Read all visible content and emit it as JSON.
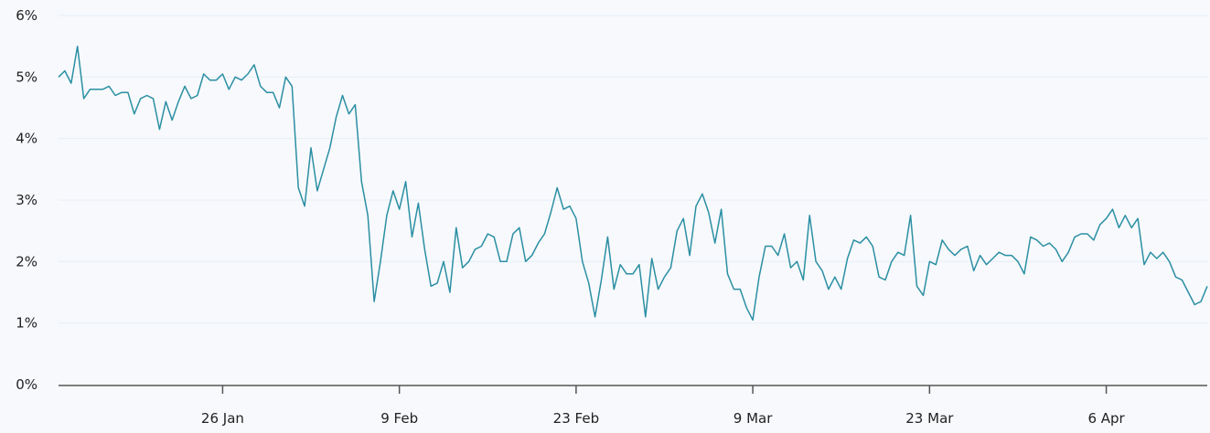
{
  "chart_data": {
    "type": "line",
    "title": "",
    "xlabel": "",
    "ylabel": "",
    "ylim": [
      0,
      6
    ],
    "y_ticks": [
      "0%",
      "1%",
      "2%",
      "3%",
      "4%",
      "5%",
      "6%"
    ],
    "y_tick_values": [
      0,
      1,
      2,
      3,
      4,
      5,
      6
    ],
    "x_ticks": [
      "26 Jan",
      "9 Feb",
      "23 Feb",
      "9 Mar",
      "23 Mar",
      "6 Apr"
    ],
    "xlim": [
      "13 Jan 00:00",
      "14 Apr 00:00"
    ],
    "grid": true,
    "line_color": "#2b8fa3",
    "series": [
      {
        "x": [
          "13 Jan 00:00",
          "13 Jan 12:00",
          "14 Jan 00:00",
          "14 Jan 12:00",
          "15 Jan 00:00",
          "15 Jan 12:00",
          "16 Jan 00:00",
          "16 Jan 12:00",
          "17 Jan 00:00",
          "17 Jan 12:00",
          "18 Jan 00:00",
          "18 Jan 12:00",
          "19 Jan 00:00",
          "19 Jan 12:00",
          "20 Jan 00:00",
          "20 Jan 12:00",
          "21 Jan 00:00",
          "21 Jan 12:00",
          "22 Jan 00:00",
          "22 Jan 12:00",
          "23 Jan 00:00",
          "23 Jan 12:00",
          "24 Jan 00:00",
          "24 Jan 12:00",
          "25 Jan 00:00",
          "25 Jan 12:00",
          "26 Jan 00:00",
          "26 Jan 12:00",
          "27 Jan 00:00",
          "27 Jan 12:00",
          "28 Jan 00:00",
          "28 Jan 12:00",
          "29 Jan 00:00",
          "29 Jan 12:00",
          "30 Jan 00:00",
          "30 Jan 12:00",
          "31 Jan 00:00",
          "31 Jan 12:00",
          "1 Feb 00:00",
          "1 Feb 12:00",
          "2 Feb 00:00",
          "2 Feb 12:00",
          "3 Feb 00:00",
          "3 Feb 12:00",
          "4 Feb 00:00",
          "4 Feb 12:00",
          "5 Feb 00:00",
          "5 Feb 12:00",
          "6 Feb 00:00",
          "6 Feb 12:00",
          "7 Feb 00:00",
          "7 Feb 12:00",
          "8 Feb 00:00",
          "8 Feb 12:00",
          "9 Feb 00:00",
          "9 Feb 12:00",
          "10 Feb 00:00",
          "10 Feb 12:00",
          "11 Feb 00:00",
          "11 Feb 12:00",
          "12 Feb 00:00",
          "12 Feb 12:00",
          "13 Feb 00:00",
          "13 Feb 12:00",
          "14 Feb 00:00",
          "14 Feb 12:00",
          "15 Feb 00:00",
          "15 Feb 12:00",
          "16 Feb 00:00",
          "16 Feb 12:00",
          "17 Feb 00:00",
          "17 Feb 12:00",
          "18 Feb 00:00",
          "18 Feb 12:00",
          "19 Feb 00:00",
          "19 Feb 12:00",
          "20 Feb 00:00",
          "20 Feb 12:00",
          "21 Feb 00:00",
          "21 Feb 12:00",
          "22 Feb 00:00",
          "22 Feb 12:00",
          "23 Feb 00:00",
          "23 Feb 12:00",
          "24 Feb 00:00",
          "24 Feb 12:00",
          "25 Feb 00:00",
          "25 Feb 12:00",
          "26 Feb 00:00",
          "26 Feb 12:00",
          "27 Feb 00:00",
          "27 Feb 12:00",
          "28 Feb 00:00",
          "28 Feb 12:00",
          "1 Mar 00:00",
          "1 Mar 12:00",
          "2 Mar 00:00",
          "2 Mar 12:00",
          "3 Mar 00:00",
          "3 Mar 12:00",
          "4 Mar 00:00",
          "4 Mar 12:00",
          "5 Mar 00:00",
          "5 Mar 12:00",
          "6 Mar 00:00",
          "6 Mar 12:00",
          "7 Mar 00:00",
          "7 Mar 12:00",
          "8 Mar 00:00",
          "8 Mar 12:00",
          "9 Mar 00:00",
          "9 Mar 12:00",
          "10 Mar 00:00",
          "10 Mar 12:00",
          "11 Mar 00:00",
          "11 Mar 12:00",
          "12 Mar 00:00",
          "12 Mar 12:00",
          "13 Mar 00:00",
          "13 Mar 12:00",
          "14 Mar 00:00",
          "14 Mar 12:00",
          "15 Mar 00:00",
          "15 Mar 12:00",
          "16 Mar 00:00",
          "16 Mar 12:00",
          "17 Mar 00:00",
          "17 Mar 12:00",
          "18 Mar 00:00",
          "18 Mar 12:00",
          "19 Mar 00:00",
          "19 Mar 12:00",
          "20 Mar 00:00",
          "20 Mar 12:00",
          "21 Mar 00:00",
          "21 Mar 12:00",
          "22 Mar 00:00",
          "22 Mar 12:00",
          "23 Mar 00:00",
          "23 Mar 12:00",
          "24 Mar 00:00",
          "24 Mar 12:00",
          "25 Mar 00:00",
          "25 Mar 12:00",
          "26 Mar 00:00",
          "26 Mar 12:00",
          "27 Mar 00:00",
          "27 Mar 12:00",
          "28 Mar 00:00",
          "28 Mar 12:00",
          "29 Mar 00:00",
          "29 Mar 12:00",
          "30 Mar 00:00",
          "30 Mar 12:00",
          "31 Mar 00:00",
          "31 Mar 12:00",
          "1 Apr 00:00",
          "1 Apr 12:00",
          "2 Apr 00:00",
          "2 Apr 12:00",
          "3 Apr 00:00",
          "3 Apr 12:00",
          "4 Apr 00:00",
          "4 Apr 12:00",
          "5 Apr 00:00",
          "5 Apr 12:00",
          "6 Apr 00:00",
          "6 Apr 12:00",
          "7 Apr 00:00",
          "7 Apr 12:00",
          "8 Apr 00:00",
          "8 Apr 12:00",
          "9 Apr 00:00",
          "9 Apr 12:00",
          "10 Apr 00:00",
          "10 Apr 12:00",
          "11 Apr 00:00",
          "11 Apr 12:00",
          "12 Apr 00:00",
          "12 Apr 12:00",
          "13 Apr 00:00",
          "13 Apr 12:00",
          "14 Apr 00:00"
        ],
        "y": [
          5.0,
          5.1,
          4.9,
          5.5,
          4.65,
          4.8,
          4.8,
          4.8,
          4.85,
          4.7,
          4.75,
          4.75,
          4.4,
          4.65,
          4.7,
          4.65,
          4.15,
          4.6,
          4.3,
          4.6,
          4.85,
          4.65,
          4.7,
          5.05,
          4.95,
          4.95,
          5.05,
          4.8,
          5.0,
          4.95,
          5.05,
          5.2,
          4.85,
          4.75,
          4.75,
          4.5,
          5.0,
          4.85,
          3.2,
          2.9,
          3.85,
          3.15,
          3.5,
          3.85,
          4.35,
          4.7,
          4.4,
          4.55,
          3.3,
          2.75,
          1.35,
          2.0,
          2.75,
          3.15,
          2.85,
          3.3,
          2.4,
          2.95,
          2.2,
          1.6,
          1.65,
          2.0,
          1.5,
          2.55,
          1.9,
          2.0,
          2.2,
          2.25,
          2.45,
          2.4,
          2.0,
          2.0,
          2.45,
          2.55,
          2.0,
          2.1,
          2.3,
          2.45,
          2.8,
          3.2,
          2.85,
          2.9,
          2.7,
          2.0,
          1.65,
          1.1,
          1.7,
          2.4,
          1.55,
          1.95,
          1.8,
          1.8,
          1.95,
          1.1,
          2.05,
          1.55,
          1.75,
          1.9,
          2.5,
          2.7,
          2.1,
          2.9,
          3.1,
          2.8,
          2.3,
          2.85,
          1.8,
          1.55,
          1.55,
          1.25,
          1.05,
          1.75,
          2.25,
          2.25,
          2.1,
          2.45,
          1.9,
          2.0,
          1.7,
          2.75,
          2.0,
          1.85,
          1.55,
          1.75,
          1.55,
          2.05,
          2.35,
          2.3,
          2.4,
          2.25,
          1.75,
          1.7,
          2.0,
          2.15,
          2.1,
          2.75,
          1.6,
          1.45,
          2.0,
          1.95,
          2.35,
          2.2,
          2.1,
          2.2,
          2.25,
          1.85,
          2.1,
          1.95,
          2.05,
          2.15,
          2.1,
          2.1,
          2.0,
          1.8,
          2.4,
          2.35,
          2.25,
          2.3,
          2.2,
          2.0,
          2.15,
          2.4,
          2.45,
          2.45,
          2.35,
          2.6,
          2.7,
          2.85,
          2.55,
          2.75,
          2.55,
          2.7,
          1.95,
          2.15,
          2.05,
          2.15,
          2.0,
          1.75,
          1.7,
          1.5,
          1.3,
          1.35,
          1.6
        ]
      }
    ]
  }
}
